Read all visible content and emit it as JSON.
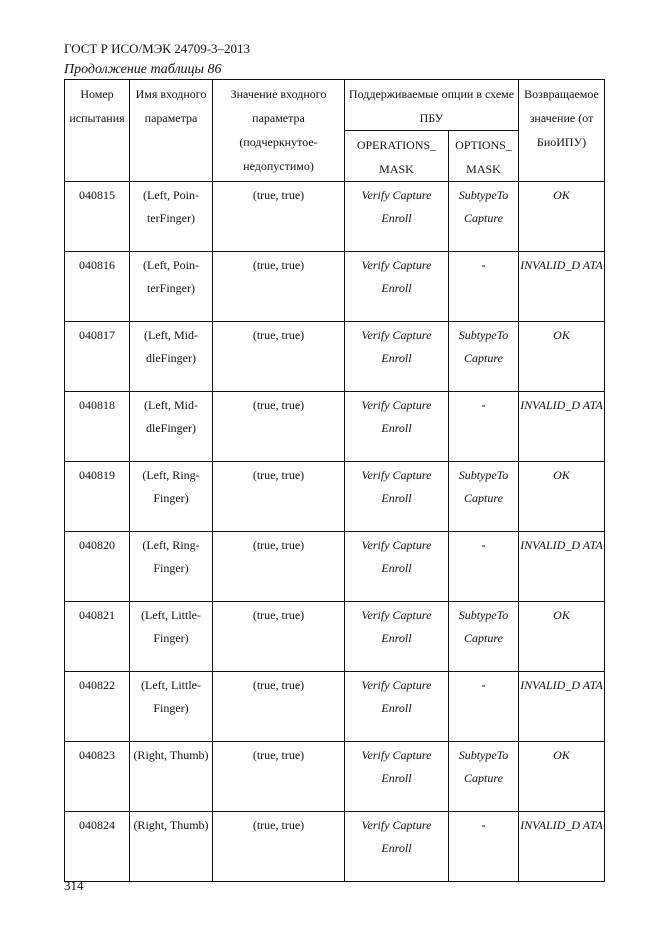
{
  "header": "ГОСТ Р ИСО/МЭК 24709-3–2013",
  "caption": "Продолжение таблицы 86",
  "columns": {
    "c1": "Номер испытания",
    "c2": "Имя входного параметра",
    "c3": "Значение входного параметра (подчеркнутое-недопустимо)",
    "c4": "Поддерживаемые опции в схеме ПБУ",
    "c4a": "OPERATIONS_ MASK",
    "c4b": "OPTIONS_ MASK",
    "c5": "Возвращаемое значение (от БиоИПУ)"
  },
  "rows": [
    {
      "id": "040815",
      "name": "(Left, Poin-terFinger)",
      "value": "(true, true)",
      "ops": "Verify Capture Enroll",
      "opts": "SubtypeTo Capture",
      "ret": "OK"
    },
    {
      "id": "040816",
      "name": "(Left, Poin-terFinger)",
      "value": "(true, true)",
      "ops": "Verify Capture Enroll",
      "opts": "-",
      "ret": "INVALID_D ATA"
    },
    {
      "id": "040817",
      "name": "(Left, Mid-dleFinger)",
      "value": "(true, true)",
      "ops": "Verify Capture Enroll",
      "opts": "SubtypeTo Capture",
      "ret": "OK"
    },
    {
      "id": "040818",
      "name": "(Left, Mid-dleFinger)",
      "value": "(true, true)",
      "ops": "Verify Capture Enroll",
      "opts": "-",
      "ret": "INVALID_D ATA"
    },
    {
      "id": "040819",
      "name": "(Left, Ring-Finger)",
      "value": "(true, true)",
      "ops": "Verify Capture Enroll",
      "opts": "SubtypeTo Capture",
      "ret": "OK"
    },
    {
      "id": "040820",
      "name": "(Left, Ring-Finger)",
      "value": "(true, true)",
      "ops": "Verify Capture Enroll",
      "opts": "-",
      "ret": "INVALID_D ATA"
    },
    {
      "id": "040821",
      "name": "(Left, Little-Finger)",
      "value": "(true, true)",
      "ops": "Verify Capture Enroll",
      "opts": "SubtypeTo Capture",
      "ret": "OK"
    },
    {
      "id": "040822",
      "name": "(Left, Little-Finger)",
      "value": "(true, true)",
      "ops": "Verify Capture Enroll",
      "opts": "-",
      "ret": "INVALID_D ATA"
    },
    {
      "id": "040823",
      "name": "(Right, Thumb)",
      "value": "(true, true)",
      "ops": "Verify Capture Enroll",
      "opts": "SubtypeTo Capture",
      "ret": "OK"
    },
    {
      "id": "040824",
      "name": "(Right, Thumb)",
      "value": "(true, true)",
      "ops": "Verify Capture Enroll",
      "opts": "-",
      "ret": "INVALID_D ATA"
    }
  ],
  "page_number": "314"
}
